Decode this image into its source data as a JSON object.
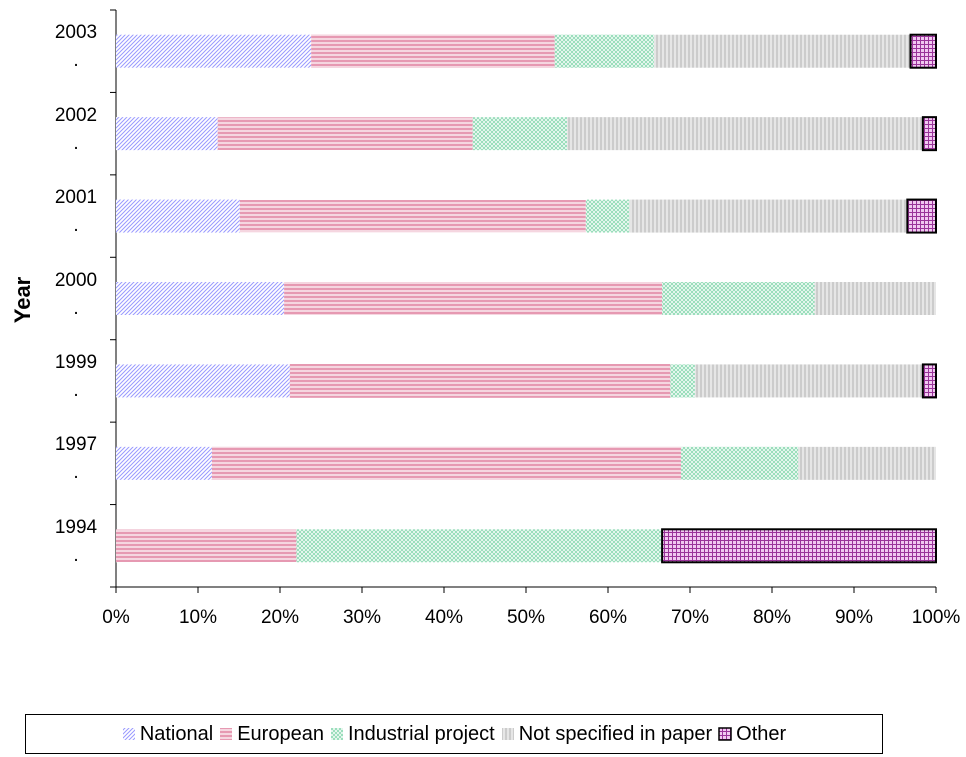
{
  "chart_data": {
    "type": "stacked-barh",
    "y_label": "Year",
    "categories": [
      "2003\n.",
      "2002\n.",
      "2001\n.",
      "2000\n.",
      "1999\n.",
      "1997\n.",
      "1994\n."
    ],
    "series": [
      {
        "name": "National",
        "color": "#9999ff",
        "pattern": "diagonal",
        "values": [
          23.8,
          12.4,
          15.1,
          20.5,
          21.2,
          11.7,
          0
        ]
      },
      {
        "name": "European",
        "color": "#cc3366",
        "pattern": "horizontal",
        "values": [
          29.7,
          31.1,
          42.2,
          46.1,
          46.4,
          57.2,
          22.0
        ]
      },
      {
        "name": "Industrial project",
        "color": "#66cc99",
        "pattern": "dense",
        "values": [
          12.1,
          11.5,
          5.3,
          18.6,
          3.0,
          14.3,
          44.6
        ]
      },
      {
        "name": "Not specified in paper",
        "color": "#999999",
        "pattern": "vertical",
        "values": [
          31.3,
          43.4,
          33.9,
          14.8,
          27.8,
          16.8,
          0
        ]
      },
      {
        "name": "Other",
        "color": "#993399",
        "pattern": "grid",
        "edgecolor": "#000000",
        "values": [
          3.1,
          1.6,
          3.5,
          0,
          1.6,
          0,
          33.4
        ]
      }
    ],
    "xlim": [
      0,
      100
    ],
    "xticks": [
      {
        "value": 0,
        "label": "0%"
      },
      {
        "value": 10,
        "label": "10%"
      },
      {
        "value": 20,
        "label": "20%"
      },
      {
        "value": 30,
        "label": "30%"
      },
      {
        "value": 40,
        "label": "40%"
      },
      {
        "value": 50,
        "label": "50%"
      },
      {
        "value": 60,
        "label": "60%"
      },
      {
        "value": 70,
        "label": "70%"
      },
      {
        "value": 80,
        "label": "80%"
      },
      {
        "value": 90,
        "label": "90%"
      },
      {
        "value": 100,
        "label": "100%"
      }
    ]
  }
}
